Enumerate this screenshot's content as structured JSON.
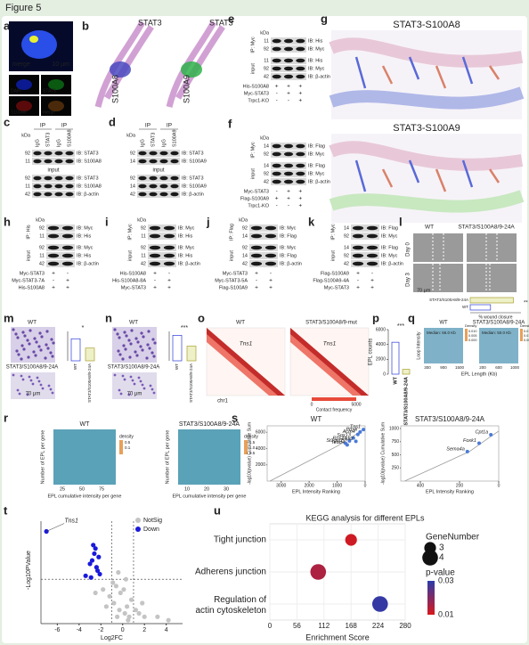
{
  "header": "Figure 5",
  "a": {
    "letter": "a",
    "labels": [
      "merge",
      "10 μm",
      "DAPI",
      "STAT3",
      "S100A8",
      "merge"
    ]
  },
  "b": {
    "letter": "b",
    "labels": [
      "STAT3",
      "S100A8",
      "STAT3",
      "S100A9"
    ]
  },
  "blots": [
    {
      "letter": "c",
      "kda": "kDa",
      "groups": [
        "IP",
        "IP"
      ],
      "top_labels": [
        "IgG",
        "STAT3",
        "IgG",
        "S100A8"
      ],
      "section": "input",
      "row_kda": [
        "92",
        "11",
        "92",
        "11",
        "42"
      ],
      "row_ib": [
        "IB: STAT3",
        "IB: S100A8",
        "IB: STAT3",
        "IB: S100A8",
        "IB: β-actin"
      ],
      "side_labels": [],
      "treatments": []
    },
    {
      "letter": "d",
      "kda": "kDa",
      "groups": [
        "IP",
        "IP"
      ],
      "top_labels": [
        "IgG",
        "STAT3",
        "IgG",
        "S100A9"
      ],
      "section": "input",
      "row_kda": [
        "92",
        "14",
        "92",
        "14",
        "42"
      ],
      "row_ib": [
        "IB: STAT3",
        "IB: S100A9",
        "IB: STAT3",
        "IB: S100A9",
        "IB: β-actin"
      ],
      "side_labels": [],
      "treatments": []
    },
    {
      "letter": "e",
      "kda": "kDa",
      "groups": [],
      "top_labels": [],
      "side_labels": [
        "IP: Myc",
        "input"
      ],
      "row_kda": [
        "11",
        "92",
        "11",
        "92",
        "42"
      ],
      "row_ib": [
        "IB: His",
        "IB: Myc",
        "IB: His",
        "IB: Myc",
        "IB: β-actin"
      ],
      "treatments": [
        {
          "name": "His-S100A8",
          "marks": [
            "+",
            "+",
            "+"
          ]
        },
        {
          "name": "Myc-STAT3",
          "marks": [
            "-",
            "+",
            "+"
          ]
        },
        {
          "name": "Trpc1-KO",
          "marks": [
            "-",
            "-",
            "+"
          ]
        }
      ]
    },
    {
      "letter": "f",
      "kda": "kDa",
      "groups": [],
      "top_labels": [],
      "side_labels": [
        "IP: Myc",
        "input"
      ],
      "row_kda": [
        "14",
        "92",
        "14",
        "92",
        "42"
      ],
      "row_ib": [
        "IB: Flag",
        "IB: Myc",
        "IB: Flag",
        "IB: Myc",
        "IB: β-actin"
      ],
      "treatments": [
        {
          "name": "Myc-STAT3",
          "marks": [
            "-",
            "+",
            "+"
          ]
        },
        {
          "name": "Flag-S100A9",
          "marks": [
            "+",
            "+",
            "+"
          ]
        },
        {
          "name": "Trpc1-KO",
          "marks": [
            "-",
            "-",
            "+"
          ]
        }
      ]
    },
    {
      "letter": "h",
      "kda": "kDa",
      "groups": [],
      "top_labels": [],
      "side_labels": [
        "IP: His",
        "input"
      ],
      "row_kda": [
        "92",
        "11",
        "92",
        "11",
        "42"
      ],
      "row_ib": [
        "IB: Myc",
        "IB: His",
        "IB: Myc",
        "IB: His",
        "IB: β-actin"
      ],
      "treatments": [
        {
          "name": "Myc-STAT3",
          "marks": [
            "+",
            "-"
          ]
        },
        {
          "name": "Myc-STAT3-7A",
          "marks": [
            "-",
            "+"
          ]
        },
        {
          "name": "His-S100A8",
          "marks": [
            "+",
            "+"
          ]
        }
      ]
    },
    {
      "letter": "i",
      "kda": "kDa",
      "groups": [],
      "top_labels": [],
      "side_labels": [
        "IP: Myc",
        "input"
      ],
      "row_kda": [
        "92",
        "11",
        "92",
        "11",
        "42"
      ],
      "row_ib": [
        "IB: Myc",
        "IB: His",
        "IB: Myc",
        "IB: His",
        "IB: β-actin"
      ],
      "treatments": [
        {
          "name": "His-S100A8",
          "marks": [
            "+",
            "-"
          ]
        },
        {
          "name": "His-S100A8-8A",
          "marks": [
            "-",
            "+"
          ]
        },
        {
          "name": "Myc-STAT3",
          "marks": [
            "+",
            "+"
          ]
        }
      ]
    },
    {
      "letter": "j",
      "kda": "kDa",
      "groups": [],
      "top_labels": [],
      "side_labels": [
        "IP: Flag",
        "input"
      ],
      "row_kda": [
        "92",
        "14",
        "92",
        "14",
        "42"
      ],
      "row_ib": [
        "IB: Myc",
        "IB: Flag",
        "IB: Myc",
        "IB: Flag",
        "IB: β-actin"
      ],
      "treatments": [
        {
          "name": "Myc-STAT3",
          "marks": [
            "+",
            "-"
          ]
        },
        {
          "name": "Myc-STAT3-5A",
          "marks": [
            "-",
            "+"
          ]
        },
        {
          "name": "Flag-S100A9",
          "marks": [
            "+",
            "+"
          ]
        }
      ]
    },
    {
      "letter": "k",
      "kda": "kDa",
      "groups": [],
      "top_labels": [],
      "side_labels": [
        "IP: Myc",
        "input"
      ],
      "row_kda": [
        "14",
        "92",
        "14",
        "92",
        "42"
      ],
      "row_ib": [
        "IB: Flag",
        "IB: Myc",
        "IB: Flag",
        "IB: Myc",
        "IB: β-actin"
      ],
      "treatments": [
        {
          "name": "Flag-S100A9",
          "marks": [
            "+",
            "-"
          ]
        },
        {
          "name": "Flag-S100A9-4A",
          "marks": [
            "-",
            "+"
          ]
        },
        {
          "name": "Myc-STAT3",
          "marks": [
            "+",
            "+"
          ]
        }
      ]
    }
  ],
  "g": {
    "letter": "g",
    "titles": [
      "STAT3-S100A8",
      "STAT3-S100A9"
    ]
  },
  "l": {
    "letter": "l",
    "columns": [
      "WT",
      "STAT3/S100A8/9-24A"
    ],
    "rows": [
      "Day 0",
      "Day 3"
    ],
    "scale": "70 μm",
    "chart": {
      "categories": [
        "STAT3/S100A8/9-24A",
        "WT"
      ],
      "values": [
        85,
        40
      ],
      "xlim": [
        0,
        100
      ],
      "x_label": "% wound closure",
      "sig": "**"
    }
  },
  "m": {
    "letter": "m",
    "titles": [
      "WT",
      "STAT3/S100A8/9-24A"
    ],
    "scale": "70 μm",
    "chart": {
      "categories": [
        "WT",
        "STAT3/S100A8/9-24A"
      ],
      "values": [
        450,
        260
      ],
      "ylim": [
        0,
        600
      ],
      "sig": "*"
    }
  },
  "n": {
    "letter": "n",
    "titles": [
      "WT",
      "STAT3/S100A8/9-24A"
    ],
    "scale": "70 μm",
    "chart": {
      "categories": [
        "WT",
        "STAT3/S100A8/9-24A"
      ],
      "values": [
        520,
        300
      ],
      "ylim": [
        0,
        600
      ],
      "sig": "***"
    }
  },
  "o": {
    "letter": "o",
    "titles": [
      "WT",
      "STAT3/S100A8/9-mut"
    ],
    "genes": [
      "Tns1",
      "Tns1"
    ],
    "chrom": "chr1",
    "scale_labels": [
      "0",
      "5000"
    ],
    "scale_title": "Contact frequency"
  },
  "p": {
    "letter": "p",
    "chart": {
      "categories": [
        "WT",
        "STAT3/S100A8/9-24A"
      ],
      "values": [
        4300,
        650
      ],
      "ylim": [
        0,
        6000
      ],
      "yticks": [
        0,
        2000,
        4000,
        6000
      ],
      "y_label": "EPL counts",
      "sig": "***"
    }
  },
  "q": {
    "letter": "q",
    "plots": [
      {
        "title": "WT",
        "median": "Median: 66.0 Kb",
        "xticks": [
          "300",
          "900",
          "1500"
        ],
        "legend_title": "Density",
        "legend_labels": [
          "0.010",
          "0.005",
          "0.000"
        ]
      },
      {
        "title": "STAT3/S100A8/9-24A",
        "median": "Median: 50.0 Kb",
        "xticks": [
          "200",
          "600",
          "1000"
        ],
        "legend_title": "Density",
        "legend_labels": [
          "0.015",
          "0.010",
          "0.005"
        ]
      }
    ],
    "x_label": "EPL Length (Kb)",
    "y_label": "Loop Intensity"
  },
  "r": {
    "letter": "r",
    "plots": [
      {
        "title": "WT",
        "xticks": [
          "25",
          "50",
          "75"
        ],
        "legend_title": "density",
        "legend_labels": [
          "0.5",
          "0.1"
        ]
      },
      {
        "title": "STAT3/S100A8/9-24A",
        "xticks": [
          "10",
          "20",
          "30"
        ],
        "legend_title": "density",
        "legend_labels": [
          "1.5",
          "1.0",
          "0.5"
        ]
      }
    ],
    "x_label": "EPL cumulative intensity per gene",
    "y_label": "Number of EPL per gene"
  },
  "s": {
    "letter": "s",
    "x_label": "EPL Intensity Ranking",
    "y_label": "-log10(pvalue) Cumulative Sum",
    "plots": [
      {
        "title": "WT",
        "xlim": [
          3500,
          0
        ],
        "ylim": [
          0,
          6800
        ],
        "xticks": [
          3000,
          2000,
          1000,
          0
        ],
        "yticks": [
          2000,
          4000,
          6000
        ],
        "curve_x": [
          3400,
          1000,
          300,
          0
        ],
        "curve_y": [
          0,
          4300,
          5800,
          6500
        ],
        "genes": [
          "Tns1",
          "Ptprk",
          "Actn4",
          "Sox13",
          "Rps14",
          "St3gal1",
          "Tead4",
          "Ezh2"
        ],
        "gene_x": [
          60,
          180,
          260,
          420,
          560,
          700,
          640,
          330
        ],
        "gene_y": [
          6350,
          6050,
          5750,
          5300,
          4950,
          4650,
          4450,
          4900
        ]
      },
      {
        "title": "STAT3/S100A8/9-24A",
        "xlim": [
          500,
          0
        ],
        "ylim": [
          0,
          1050
        ],
        "xticks": [
          400,
          200,
          0
        ],
        "yticks": [
          250,
          500,
          750,
          1000
        ],
        "curve_x": [
          480,
          150,
          40,
          0
        ],
        "curve_y": [
          0,
          560,
          850,
          950
        ],
        "genes": [
          "Cpt1a",
          "Foxk1",
          "Sema4a"
        ],
        "gene_x": [
          40,
          100,
          160
        ],
        "gene_y": [
          880,
          720,
          560
        ]
      }
    ]
  },
  "chart_data": [
    {
      "type": "scatter",
      "panel": "t",
      "x_label": "Log2FC",
      "y_label": "-Log10PValue",
      "annotation": "Tns1",
      "xlim": [
        -7.5,
        5.5
      ],
      "ylim": [
        0,
        3
      ],
      "xticks": [
        -6,
        -4,
        -2,
        0,
        2,
        4
      ],
      "cutoff_x": [
        -1,
        1
      ],
      "cutoff_y": 1.3,
      "series": [
        {
          "name": "NotSig",
          "color": "#c4c4c4",
          "x": [
            -0.5,
            -0.3,
            0.2,
            0.4,
            -0.8,
            0.6,
            -0.2,
            0.1,
            -0.6,
            0.8,
            1.2,
            -1.2,
            1.5,
            -1.5,
            0.3,
            -0.4,
            2.0,
            -1.8,
            0.5,
            -0.9,
            1.8,
            3.2,
            4.2,
            -2.5
          ],
          "values": [
            0.2,
            0.4,
            0.3,
            0.5,
            0.6,
            0.2,
            0.9,
            1.0,
            1.1,
            0.7,
            0.4,
            0.8,
            0.3,
            0.5,
            1.3,
            1.5,
            0.2,
            1.0,
            0.1,
            1.2,
            0.6,
            0.2,
            0.1,
            0.9
          ]
        },
        {
          "name": "Down",
          "color": "#1a1adb",
          "x": [
            -7.0,
            -2.7,
            -2.5,
            -2.6,
            -2.2,
            -2.8,
            -3.0,
            -2.4,
            -2.3,
            -2.1,
            -2.9,
            -3.4
          ],
          "values": [
            2.7,
            2.3,
            2.2,
            2.05,
            1.95,
            1.85,
            1.75,
            1.65,
            1.55,
            1.45,
            1.35,
            1.4
          ]
        }
      ]
    },
    {
      "type": "bubble",
      "panel": "u",
      "title": "KEGG analysis for different EPLs",
      "x_label": "Enrichment Score",
      "categories": [
        "Tight junction",
        "Adherens junction",
        "Regulation of actin cytoskeleton"
      ],
      "values": [
        168,
        100,
        228
      ],
      "sizes": [
        3,
        4,
        4
      ],
      "pvalues": [
        0.011,
        0.015,
        0.029
      ],
      "xlim": [
        0,
        280
      ],
      "xticks": [
        0,
        56,
        112,
        168,
        224,
        280
      ],
      "size_title": "GeneNumber",
      "size_ticks": [
        3,
        4
      ],
      "color_title": "p-value",
      "color_lim": [
        0.01,
        0.03
      ],
      "color_ticks": [
        0.03,
        0.01
      ],
      "color_low": "#d7191c",
      "color_high": "#2b3bab"
    }
  ]
}
